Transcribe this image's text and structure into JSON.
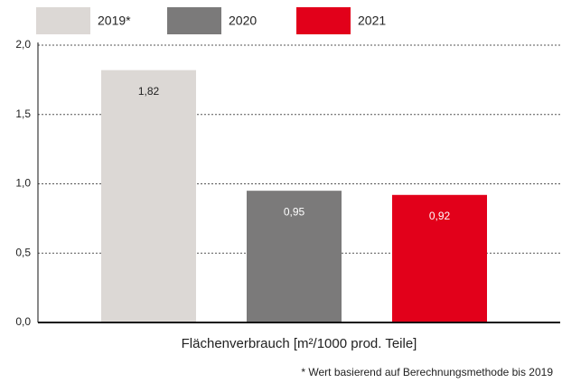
{
  "chart_data": {
    "type": "bar",
    "x_label": "Flächenverbrauch [m²/1000 prod. Teile]",
    "footnote": "* Wert basierend auf Berechnungsmethode bis 2019",
    "series": [
      {
        "name": "2019*",
        "color": "#dcd8d5",
        "values": [
          1.82
        ],
        "value_labels": [
          "1,82"
        ]
      },
      {
        "name": "2020",
        "color": "#7b7a7a",
        "values": [
          0.95
        ],
        "value_labels": [
          "0,95"
        ]
      },
      {
        "name": "2021",
        "color": "#e2001a",
        "values": [
          0.92
        ],
        "value_labels": [
          "0,92"
        ]
      }
    ],
    "ylim": [
      0,
      2
    ],
    "yticks": [
      {
        "value": 0,
        "label": "0,0"
      },
      {
        "value": 0.5,
        "label": "0,5"
      },
      {
        "value": 1,
        "label": "1,0"
      },
      {
        "value": 1.5,
        "label": "1,5"
      },
      {
        "value": 2,
        "label": "2,0"
      }
    ],
    "grid": true,
    "legend": "top"
  }
}
